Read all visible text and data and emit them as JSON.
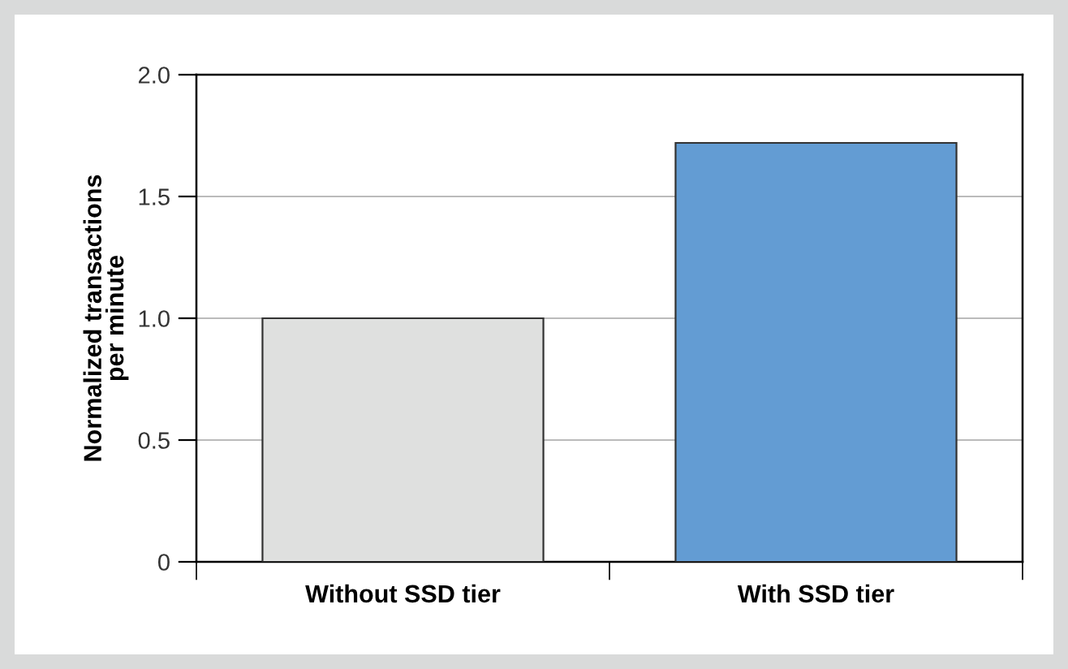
{
  "chart_data": {
    "type": "bar",
    "ylabel": "Normalized transactions\nper minute",
    "categories": [
      "Without SSD tier",
      "With SSD tier"
    ],
    "values": [
      1.0,
      1.72
    ],
    "colors": [
      "#dfe0df",
      "#639cd3"
    ],
    "ylim": [
      0,
      2.0
    ],
    "yticks": [
      {
        "value": 0,
        "label": "0"
      },
      0.5,
      {
        "value": 1,
        "label": "1.0"
      },
      1.5,
      {
        "value": 2,
        "label": "2.0"
      }
    ],
    "grid": "y"
  }
}
